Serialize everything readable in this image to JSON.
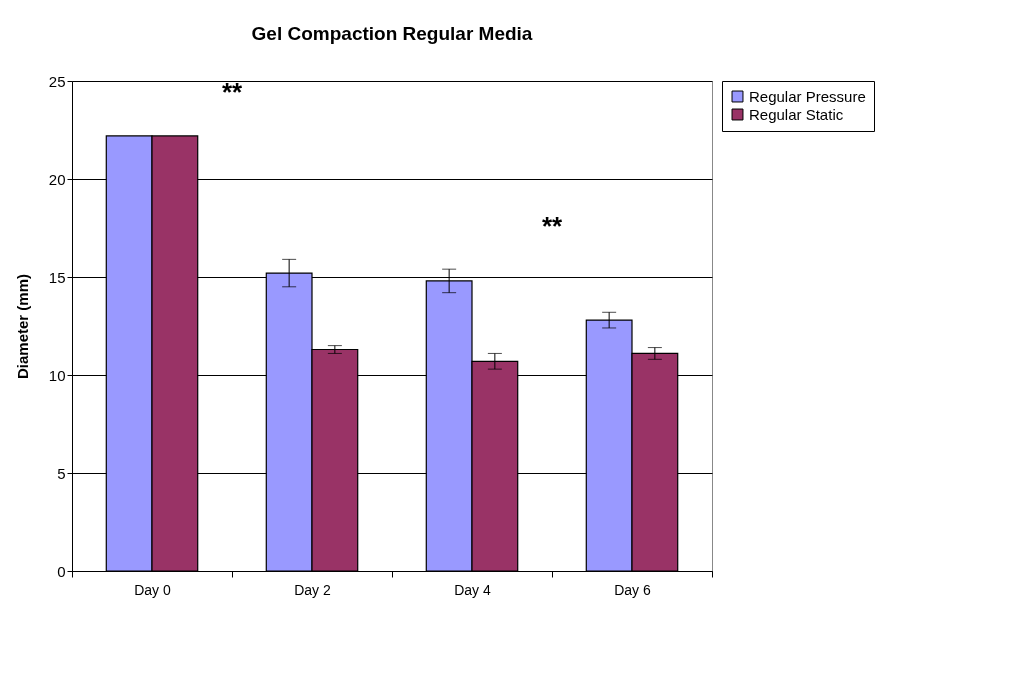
{
  "chart_data": {
    "type": "bar",
    "title": "Gel Compaction Regular Media",
    "ylabel": "Diameter (mm)",
    "categories": [
      "Day 0",
      "Day 2",
      "Day 4",
      "Day 6"
    ],
    "series": [
      {
        "name": "Regular Pressure",
        "color": "#9999ff",
        "values": [
          22.2,
          15.2,
          14.8,
          12.8
        ],
        "errors": [
          null,
          0.7,
          0.6,
          0.4
        ]
      },
      {
        "name": "Regular Static",
        "color": "#993366",
        "values": [
          22.2,
          11.3,
          10.7,
          11.1
        ],
        "errors": [
          null,
          0.2,
          0.4,
          0.3
        ]
      }
    ],
    "ylim": [
      0,
      25
    ],
    "yticks": [
      0,
      5,
      10,
      15,
      20,
      25
    ],
    "grid": "y",
    "legend": "right",
    "annotations": [
      "**",
      "**"
    ]
  }
}
